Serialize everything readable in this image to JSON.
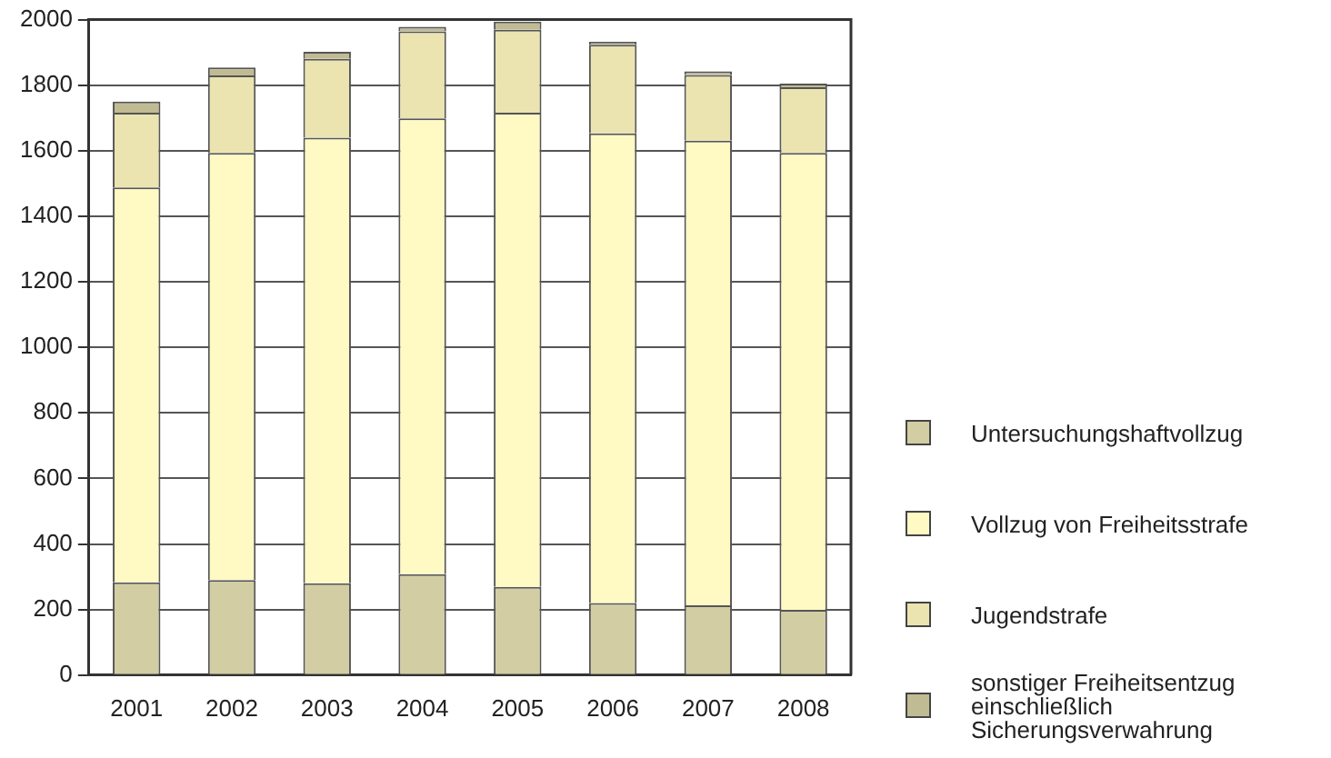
{
  "chart_data": {
    "type": "bar",
    "stacked": true,
    "categories": [
      "2001",
      "2002",
      "2003",
      "2004",
      "2005",
      "2006",
      "2007",
      "2008"
    ],
    "series": [
      {
        "name": "Untersuchungshaftvollzug",
        "color": "#d3cda4",
        "values": [
          283,
          290,
          280,
          308,
          269,
          220,
          213,
          199
        ]
      },
      {
        "name": "Vollzug von Freiheitsstrafe",
        "color": "#fff9c4",
        "values": [
          1205,
          1303,
          1360,
          1391,
          1447,
          1433,
          1418,
          1394
        ]
      },
      {
        "name": "Jugendstrafe",
        "color": "#ebe4b0",
        "values": [
          228,
          237,
          240,
          265,
          253,
          270,
          200,
          201
        ]
      },
      {
        "name": "sonstiger Freiheitsentzug einschließlich Sicherungsverwahrung",
        "color": "#c0bb93",
        "values": [
          34,
          24,
          22,
          14,
          25,
          9,
          11,
          11
        ]
      }
    ],
    "ylim": [
      0,
      2000
    ],
    "yticks": [
      0,
      200,
      400,
      600,
      800,
      1000,
      1200,
      1400,
      1600,
      1800,
      2000
    ],
    "grid": "y",
    "legend": "right"
  }
}
